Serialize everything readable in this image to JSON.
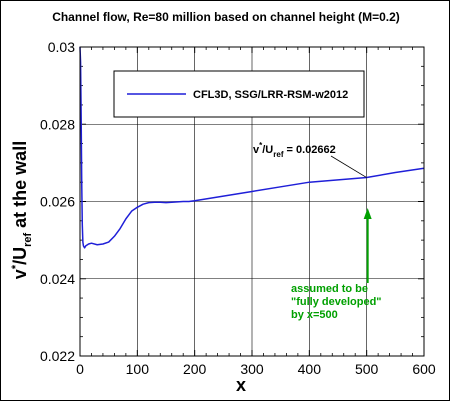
{
  "chart_data": {
    "type": "line",
    "title": "Channel flow, Re=80 million based on channel height (M=0.2)",
    "xlabel": "x",
    "ylabel": {
      "main": "v",
      "sup": "*",
      "slash": "/U",
      "sub": "ref",
      "rest": " at the wall"
    },
    "xlim": [
      0,
      600
    ],
    "ylim": [
      0.022,
      0.03
    ],
    "xticks": [
      "0",
      "100",
      "200",
      "300",
      "400",
      "500",
      "600"
    ],
    "yticks": [
      "0.022",
      "0.024",
      "0.026",
      "0.028",
      "0.03"
    ],
    "grid": true,
    "legend_position": "top-center",
    "series": [
      {
        "name": "CFL3D, SSG/LRR-RSM-w2012",
        "color": "#1f1fd8",
        "x": [
          0,
          1,
          2,
          3,
          4,
          5,
          6,
          8,
          10,
          15,
          20,
          30,
          40,
          50,
          60,
          70,
          80,
          90,
          100,
          110,
          120,
          130,
          140,
          150,
          160,
          170,
          180,
          190,
          200,
          250,
          300,
          350,
          400,
          450,
          500,
          550,
          600
        ],
        "y": [
          0.0301,
          0.0296,
          0.0282,
          0.0265,
          0.0254,
          0.02495,
          0.02485,
          0.0248,
          0.02485,
          0.0249,
          0.02492,
          0.02488,
          0.0249,
          0.02495,
          0.0251,
          0.0253,
          0.02555,
          0.02575,
          0.02585,
          0.02593,
          0.02597,
          0.02598,
          0.02598,
          0.02597,
          0.02598,
          0.02599,
          0.026,
          0.026,
          0.02602,
          0.02614,
          0.02626,
          0.02638,
          0.0265,
          0.02656,
          0.02662,
          0.02675,
          0.02686
        ]
      }
    ],
    "annotations": {
      "value_label": {
        "v": "v",
        "sup": "*",
        "slash": "/U",
        "sub": "ref",
        "eq": " = 0.02662"
      },
      "value_point": [
        500,
        0.02662
      ],
      "green_note": [
        "assumed to be",
        "\"fully developed\"",
        "by x=500"
      ],
      "green_color": "#00a000"
    }
  }
}
